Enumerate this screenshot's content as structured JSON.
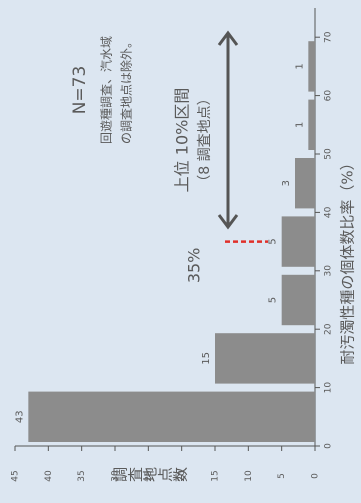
{
  "chart_data": {
    "type": "histogram",
    "bins": [
      0,
      10,
      20,
      30,
      40,
      50,
      60,
      70
    ],
    "values": [
      43,
      15,
      5,
      5,
      3,
      1,
      1
    ],
    "color": "#8c8c8c",
    "xlim": [
      0,
      75
    ],
    "xticks": [
      0,
      10,
      20,
      30,
      40,
      50,
      60,
      70
    ],
    "ylim": [
      0,
      45
    ],
    "yticks": [
      0,
      5,
      10,
      15,
      20,
      25,
      30,
      35,
      40,
      45
    ],
    "xlabel": "耐汚濁性種の個体数比率（%）",
    "ylabel": "調査地点数",
    "annotations": [
      "N=73",
      "回遊種調査、汽水域",
      "の調査地点は除外。",
      "上位 10%区間",
      "（8 調査地点）"
    ],
    "threshold": {
      "value": 35,
      "label": "35%",
      "color": "#e0302a"
    }
  }
}
